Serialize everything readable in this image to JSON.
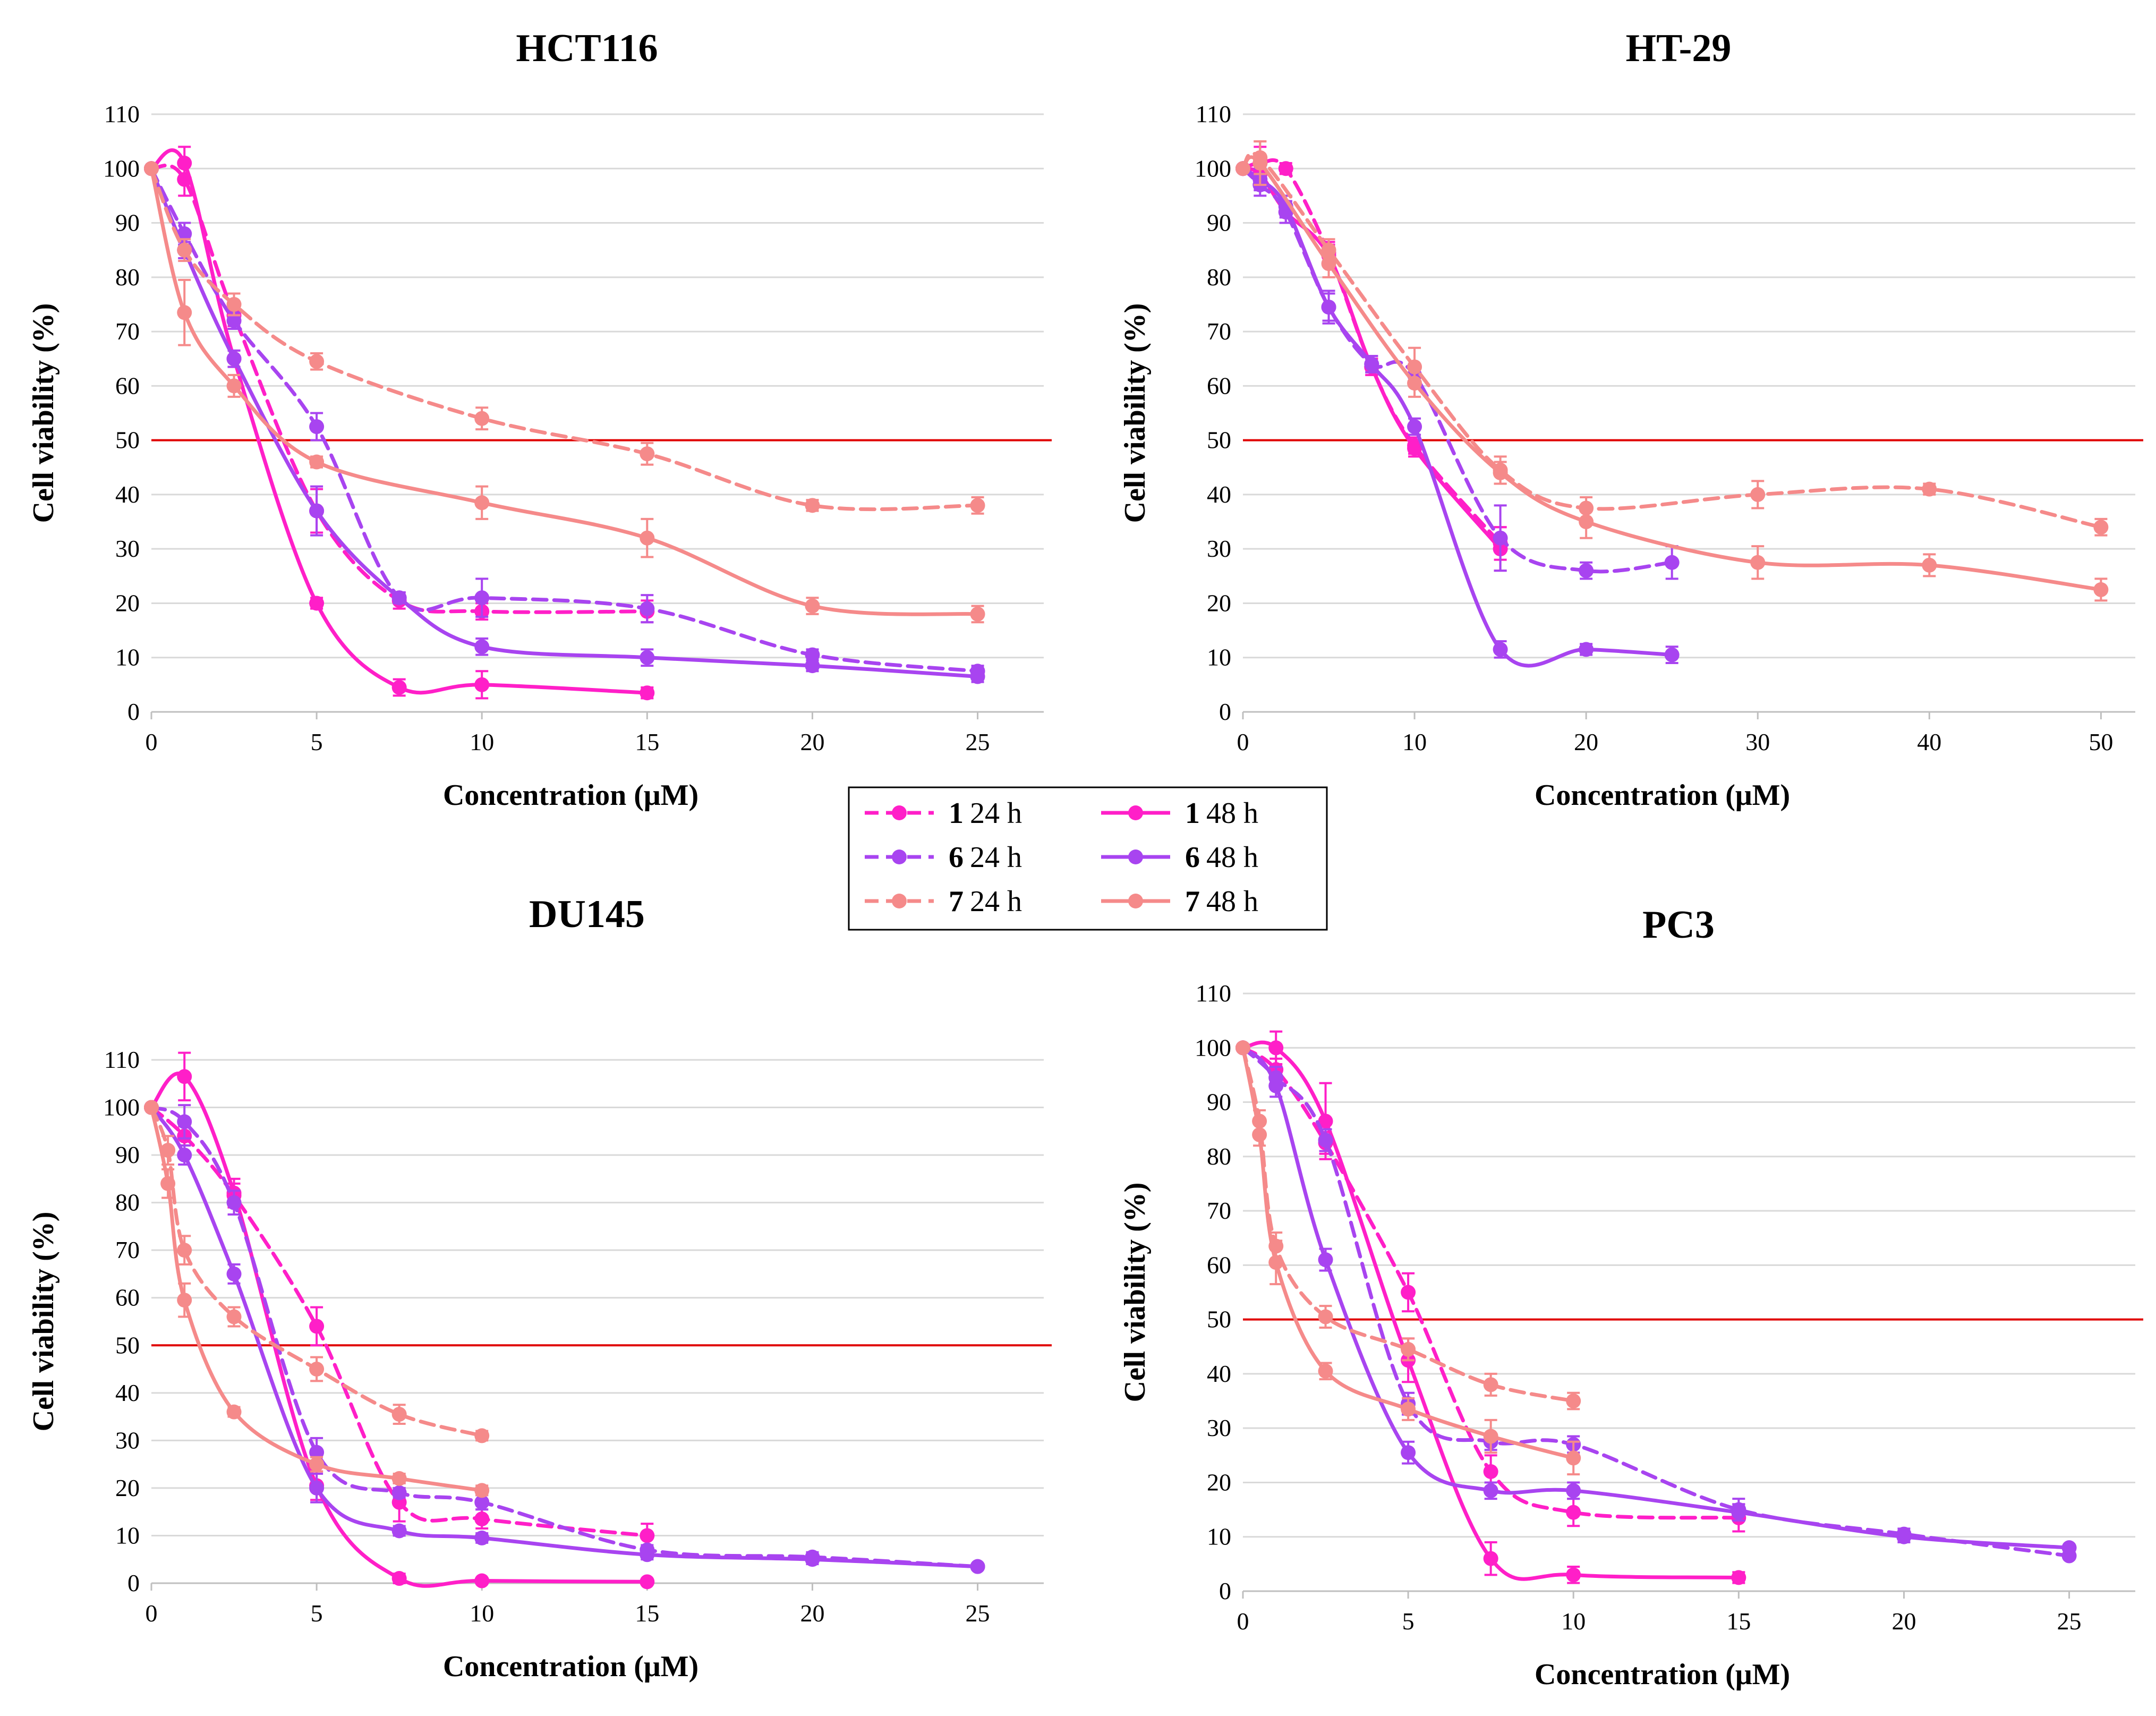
{
  "legend": {
    "entries": [
      {
        "compound": "1",
        "time": "24 h",
        "series": "1_24h"
      },
      {
        "compound": "1",
        "time": "48 h",
        "series": "1_48h"
      },
      {
        "compound": "6",
        "time": "24 h",
        "series": "6_24h"
      },
      {
        "compound": "6",
        "time": "48 h",
        "series": "6_48h"
      },
      {
        "compound": "7",
        "time": "24 h",
        "series": "7_24h"
      },
      {
        "compound": "7",
        "time": "48 h",
        "series": "7_48h"
      }
    ]
  },
  "series_styles": {
    "1_24h": {
      "color": "#ff1fc8",
      "dashed": true
    },
    "1_48h": {
      "color": "#ff1fc8",
      "dashed": false
    },
    "6_24h": {
      "color": "#a844f0",
      "dashed": true
    },
    "6_48h": {
      "color": "#a844f0",
      "dashed": false
    },
    "7_24h": {
      "color": "#f58a8a",
      "dashed": true
    },
    "7_48h": {
      "color": "#f58a8a",
      "dashed": false
    }
  },
  "reference_line": {
    "value": 50,
    "color": "#e00000"
  },
  "chart_data": [
    {
      "type": "line",
      "title": "HCT116",
      "xlabel": "Concentration (μM)",
      "ylabel": "Cell viability (%)",
      "xlim": [
        0,
        27
      ],
      "ylim": [
        0,
        110
      ],
      "xticks": [
        0,
        5,
        10,
        15,
        20,
        25
      ],
      "yticks": [
        0,
        10,
        20,
        30,
        40,
        50,
        60,
        70,
        80,
        90,
        100,
        110
      ],
      "grid": true,
      "series": [
        {
          "id": "1_24h",
          "x": [
            0,
            1,
            2.5,
            5,
            7.5,
            10,
            15
          ],
          "y": [
            100,
            98,
            73,
            37,
            20.5,
            18.5,
            18.5
          ],
          "err": [
            0,
            3,
            2,
            4,
            1.5,
            1.5,
            2
          ]
        },
        {
          "id": "1_48h",
          "x": [
            0,
            1,
            2.5,
            5,
            7.5,
            10,
            15
          ],
          "y": [
            100,
            101,
            65,
            20,
            4.5,
            5,
            3.5
          ],
          "err": [
            0,
            3,
            1.5,
            1,
            1.5,
            2.5,
            1
          ]
        },
        {
          "id": "6_24h",
          "x": [
            0,
            1,
            2.5,
            5,
            7.5,
            10,
            15,
            20,
            25
          ],
          "y": [
            100,
            88,
            72,
            52.5,
            21,
            21,
            19,
            10.5,
            7.5
          ],
          "err": [
            0,
            2,
            1.5,
            2.5,
            1,
            3.5,
            2.5,
            1,
            1
          ]
        },
        {
          "id": "6_48h",
          "x": [
            0,
            1,
            2.5,
            5,
            7.5,
            10,
            15,
            20,
            25
          ],
          "y": [
            100,
            85,
            65,
            37,
            21,
            12,
            10,
            8.5,
            6.5
          ],
          "err": [
            0,
            1.5,
            1.5,
            4.5,
            1,
            1.5,
            1.5,
            1,
            1
          ]
        },
        {
          "id": "7_24h",
          "x": [
            0,
            1,
            2.5,
            5,
            10,
            15,
            20,
            25
          ],
          "y": [
            100,
            85,
            75,
            64.5,
            54,
            47.5,
            38,
            38
          ],
          "err": [
            0,
            2,
            2,
            1.5,
            2,
            2,
            1,
            1.5
          ]
        },
        {
          "id": "7_48h",
          "x": [
            0,
            1,
            2.5,
            5,
            10,
            15,
            20,
            25
          ],
          "y": [
            100,
            73.5,
            60,
            46,
            38.5,
            32,
            19.5,
            18
          ],
          "err": [
            0,
            6,
            2,
            1,
            3,
            3.5,
            1.5,
            1.5
          ]
        }
      ]
    },
    {
      "type": "line",
      "title": "HT-29",
      "xlabel": "Concentration (μM)",
      "ylabel": "Cell viability (%)",
      "xlim": [
        0,
        52
      ],
      "ylim": [
        0,
        110
      ],
      "xticks": [
        0,
        10,
        20,
        30,
        40,
        50
      ],
      "yticks": [
        0,
        10,
        20,
        30,
        40,
        50,
        60,
        70,
        80,
        90,
        100,
        110
      ],
      "grid": true,
      "series": [
        {
          "id": "1_24h",
          "x": [
            0,
            1,
            2.5,
            5,
            7.5,
            10,
            15
          ],
          "y": [
            100,
            101,
            100,
            84.5,
            63.5,
            49,
            31
          ],
          "err": [
            0,
            3,
            1,
            2,
            1.5,
            1.5,
            3
          ]
        },
        {
          "id": "1_48h",
          "x": [
            0,
            1,
            2.5,
            5,
            7.5,
            10,
            15
          ],
          "y": [
            100,
            99,
            92,
            84,
            63.5,
            48.5,
            30
          ],
          "err": [
            0,
            2.5,
            2,
            2,
            1.5,
            1.5,
            4
          ]
        },
        {
          "id": "6_24h",
          "x": [
            0,
            1,
            2.5,
            5,
            7.5,
            10,
            15,
            20,
            25
          ],
          "y": [
            100,
            97,
            92,
            74.5,
            64,
            62,
            32,
            26,
            27.5
          ],
          "err": [
            0,
            2,
            2,
            2.5,
            1.5,
            2,
            6,
            1.5,
            3
          ]
        },
        {
          "id": "6_48h",
          "x": [
            0,
            1,
            2.5,
            5,
            7.5,
            10,
            15,
            20,
            25
          ],
          "y": [
            100,
            98,
            93,
            74.5,
            64,
            52.5,
            11.5,
            11.5,
            10.5
          ],
          "err": [
            0,
            2,
            2,
            3,
            1.5,
            1.5,
            1.5,
            1,
            1.5
          ]
        },
        {
          "id": "7_24h",
          "x": [
            0,
            1,
            5,
            10,
            15,
            20,
            30,
            40,
            50
          ],
          "y": [
            100,
            102,
            85,
            63.5,
            44.5,
            37.5,
            40,
            41,
            34
          ],
          "err": [
            0,
            3,
            2,
            3.5,
            2.5,
            2,
            2.5,
            1,
            1.5
          ]
        },
        {
          "id": "7_48h",
          "x": [
            0,
            1,
            5,
            10,
            15,
            20,
            30,
            40,
            50
          ],
          "y": [
            100,
            101,
            82.5,
            60.5,
            44,
            35,
            27.5,
            27,
            22.5
          ],
          "err": [
            0,
            4,
            2.5,
            2.5,
            2,
            3,
            3,
            2,
            2
          ]
        }
      ]
    },
    {
      "type": "line",
      "title": "DU145",
      "xlabel": "Concentration (μM)",
      "ylabel": "Cell viability (%)",
      "xlim": [
        0,
        27
      ],
      "ylim": [
        0,
        110
      ],
      "xticks": [
        0,
        5,
        10,
        15,
        20,
        25
      ],
      "yticks": [
        0,
        10,
        20,
        30,
        40,
        50,
        60,
        70,
        80,
        90,
        100,
        110
      ],
      "grid": true,
      "series": [
        {
          "id": "1_24h",
          "x": [
            0,
            1,
            2.5,
            5,
            7.5,
            10,
            15
          ],
          "y": [
            100,
            94,
            81.5,
            54,
            17,
            13.5,
            10
          ],
          "err": [
            0,
            2,
            2.5,
            4,
            4,
            2,
            2.5
          ]
        },
        {
          "id": "1_48h",
          "x": [
            0,
            1,
            2.5,
            5,
            7.5,
            10,
            15
          ],
          "y": [
            100,
            106.5,
            82,
            20.5,
            1,
            0.5,
            0.3
          ],
          "err": [
            0,
            5,
            3,
            3,
            1,
            0.5,
            0.5
          ]
        },
        {
          "id": "6_24h",
          "x": [
            0,
            1,
            2.5,
            5,
            7.5,
            10,
            15,
            20,
            25
          ],
          "y": [
            100,
            97,
            80,
            27.5,
            19,
            17,
            7,
            5.5,
            3.5
          ],
          "err": [
            0,
            3.5,
            2.5,
            3,
            1,
            1.5,
            1,
            1,
            0.5
          ]
        },
        {
          "id": "6_48h",
          "x": [
            0,
            1,
            2.5,
            5,
            7.5,
            10,
            15,
            20,
            25
          ],
          "y": [
            100,
            90,
            65,
            20,
            11,
            9.5,
            6,
            5,
            3.5
          ],
          "err": [
            0,
            2,
            2,
            3,
            1,
            1,
            1,
            1,
            0.5
          ]
        },
        {
          "id": "7_24h",
          "x": [
            0,
            0.5,
            1,
            2.5,
            5,
            7.5,
            10
          ],
          "y": [
            100,
            91,
            70,
            56,
            45,
            35.5,
            31
          ],
          "err": [
            0,
            3,
            3,
            2,
            2.5,
            2,
            1
          ]
        },
        {
          "id": "7_48h",
          "x": [
            0,
            0.5,
            1,
            2.5,
            5,
            7.5,
            10
          ],
          "y": [
            100,
            84,
            59.5,
            36,
            25,
            22,
            19.5
          ],
          "err": [
            0,
            3,
            3.5,
            1,
            1.5,
            1,
            1
          ]
        }
      ]
    },
    {
      "type": "line",
      "title": "PC3",
      "xlabel": "Concentration (μM)",
      "ylabel": "Cell viability (%)",
      "xlim": [
        0,
        27
      ],
      "ylim": [
        0,
        110
      ],
      "xticks": [
        0,
        5,
        10,
        15,
        20,
        25
      ],
      "yticks": [
        0,
        10,
        20,
        30,
        40,
        50,
        60,
        70,
        80,
        90,
        100,
        110
      ],
      "grid": true,
      "series": [
        {
          "id": "1_24h",
          "x": [
            0,
            1,
            2.5,
            5,
            7.5,
            10,
            15
          ],
          "y": [
            100,
            96,
            82.5,
            55,
            22,
            14.5,
            13.5
          ],
          "err": [
            0,
            2,
            2,
            3.5,
            3,
            2.5,
            2.5
          ]
        },
        {
          "id": "1_48h",
          "x": [
            0,
            1,
            2.5,
            5,
            7.5,
            10,
            15
          ],
          "y": [
            100,
            100,
            86.5,
            42.5,
            6,
            3,
            2.5
          ],
          "err": [
            0,
            3,
            7,
            4,
            3,
            1.5,
            1
          ]
        },
        {
          "id": "6_24h",
          "x": [
            0,
            1,
            2.5,
            5,
            7.5,
            10,
            15,
            20,
            25
          ],
          "y": [
            100,
            94.5,
            83,
            34.5,
            27.5,
            27,
            15,
            10.5,
            6.5
          ],
          "err": [
            0,
            2,
            2,
            2,
            1.5,
            1.5,
            2,
            1,
            0.5
          ]
        },
        {
          "id": "6_48h",
          "x": [
            0,
            1,
            2.5,
            5,
            7.5,
            10,
            15,
            20,
            25
          ],
          "y": [
            100,
            93,
            61,
            25.5,
            18.5,
            18.5,
            14.5,
            10,
            8
          ],
          "err": [
            0,
            2,
            2,
            2,
            1.5,
            1.5,
            1.5,
            1,
            0.5
          ]
        },
        {
          "id": "7_24h",
          "x": [
            0,
            0.5,
            1,
            2.5,
            5,
            7.5,
            10
          ],
          "y": [
            100,
            86.5,
            63.5,
            50.5,
            44.5,
            38,
            35
          ],
          "err": [
            0,
            2,
            2.5,
            2,
            2,
            2,
            1.5
          ]
        },
        {
          "id": "7_48h",
          "x": [
            0,
            0.5,
            1,
            2.5,
            5,
            7.5,
            10
          ],
          "y": [
            100,
            84,
            60.5,
            40.5,
            33.5,
            28.5,
            24.5
          ],
          "err": [
            0,
            2,
            4,
            1.5,
            2,
            3,
            3
          ]
        }
      ]
    }
  ]
}
